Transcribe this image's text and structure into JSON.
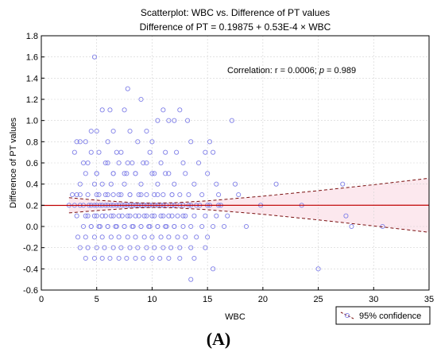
{
  "panel_label": "(A)",
  "chart_data": {
    "type": "scatter",
    "title": "Scatterplot: WBC  vs. Difference of PT values",
    "subtitle": "Difference of PT = 0.19875 + 0.53E-4 × WBC",
    "xlabel": "WBC",
    "ylabel": "Difference of PT values",
    "xlim": [
      0,
      35
    ],
    "ylim": [
      -0.6,
      1.8
    ],
    "xticks": [
      "0",
      "5",
      "10",
      "15",
      "20",
      "25",
      "30",
      "35"
    ],
    "yticks": [
      "-0.6",
      "-0.4",
      "-0.2",
      "0.0",
      "0.2",
      "0.4",
      "0.6",
      "0.8",
      "1.0",
      "1.2",
      "1.4",
      "1.6",
      "1.8"
    ],
    "grid": true,
    "annotation": {
      "prefix": "Correlation: r = 0.0006; ",
      "p_symbol": "p",
      "suffix": " = 0.989"
    },
    "legend": {
      "label": "95% confidence",
      "placement": "below-right"
    },
    "colors": {
      "points": "#8080e8",
      "fit": "#c00000",
      "confidence": "#7a1010",
      "band": "#fce8ee"
    },
    "fit": {
      "intercept": 0.19875,
      "slope": 5.3e-05
    },
    "confidence_band": {
      "x": [
        2.5,
        5,
        8.5,
        10,
        12,
        15,
        20,
        25,
        30,
        35
      ],
      "lower": [
        0.128,
        0.15,
        0.175,
        0.18,
        0.176,
        0.158,
        0.115,
        0.062,
        0.005,
        -0.055
      ],
      "upper": [
        0.272,
        0.248,
        0.224,
        0.22,
        0.224,
        0.242,
        0.286,
        0.338,
        0.394,
        0.455
      ]
    },
    "x": [
      4.8,
      7.8,
      9,
      5.5,
      6.2,
      7.5,
      11,
      12.5,
      10.5,
      11.5,
      12,
      13.2,
      17.2,
      4.5,
      5,
      6.5,
      8,
      9.5,
      3.2,
      3.5,
      4,
      6,
      8.7,
      10,
      13.5,
      15.2,
      3,
      4.5,
      5.2,
      6.8,
      7.2,
      9.8,
      11.2,
      12.2,
      14.8,
      15.5,
      3.8,
      4.2,
      5.8,
      7,
      8.2,
      9.2,
      10.8,
      12.8,
      14.2,
      4,
      5,
      6.5,
      7.7,
      8.5,
      10.2,
      11.5,
      13,
      15,
      3.5,
      4.8,
      5.5,
      6.3,
      7.5,
      9,
      10.5,
      12,
      13.8,
      15.8,
      17.5,
      21.2,
      27.2,
      2.8,
      3.5,
      4.2,
      5,
      5.8,
      6.5,
      7.2,
      8,
      8.8,
      9.5,
      10.2,
      11,
      11.8,
      12.5,
      13.3,
      14.5,
      16,
      17.8,
      3,
      3.8,
      4.5,
      5.3,
      6,
      6.8,
      7.5,
      8.3,
      9,
      9.8,
      10.5,
      11.3,
      12,
      12.8,
      13.5,
      14.3,
      15.2,
      16.2,
      19.8,
      23.5,
      3.2,
      4,
      4.8,
      5.5,
      6.3,
      7,
      7.8,
      8.5,
      9.3,
      10,
      10.8,
      11.5,
      12.3,
      13,
      13.8,
      14.8,
      15.8,
      16.8,
      2.5,
      3.5,
      4.3,
      5,
      5.8,
      6.5,
      7.3,
      8,
      8.8,
      9.5,
      10.3,
      11,
      11.8,
      12.5,
      13.3,
      14,
      15,
      16,
      27.5,
      3.8,
      4.5,
      5.3,
      6,
      6.8,
      7.5,
      8.3,
      9,
      9.8,
      10.5,
      11.3,
      12,
      12.8,
      13.5,
      14.5,
      15.5,
      16.5,
      18.5,
      28,
      30.8,
      3.3,
      4,
      4.8,
      5.5,
      6.3,
      7,
      7.8,
      8.5,
      9.3,
      10,
      10.8,
      11.5,
      12.3,
      13,
      14,
      15,
      3.5,
      4.2,
      5,
      5.7,
      6.5,
      7.2,
      8,
      8.7,
      9.5,
      10.2,
      11,
      11.7,
      12.5,
      13.5,
      14.8,
      4,
      4.8,
      5.5,
      6.2,
      7,
      7.7,
      8.5,
      9.2,
      10,
      10.7,
      11.5,
      12.5,
      13.8,
      3.2,
      4.5,
      5.2,
      6,
      6.7,
      7.5,
      8.2,
      9,
      9.7,
      10.5,
      11.2,
      12,
      4.2,
      5,
      5.8,
      6.5,
      7.3,
      8,
      8.8,
      9.5,
      10.2,
      11,
      11.8,
      12.8,
      4.8,
      5.5,
      6.3,
      7,
      7.8,
      8.5,
      9.3,
      10,
      10.8,
      5.2,
      6,
      7,
      8,
      9,
      10.5,
      11.8,
      5,
      6.5,
      7.5,
      8.5,
      10,
      11.2,
      6,
      7.8,
      9.5,
      15.5,
      25,
      13.5
    ],
    "y": [
      1.6,
      1.3,
      1.2,
      1.1,
      1.1,
      1.1,
      1.1,
      1.1,
      1.0,
      1.0,
      1.0,
      1.0,
      1.0,
      0.9,
      0.9,
      0.9,
      0.9,
      0.9,
      0.8,
      0.8,
      0.8,
      0.8,
      0.8,
      0.8,
      0.8,
      0.8,
      0.7,
      0.7,
      0.7,
      0.7,
      0.7,
      0.7,
      0.7,
      0.7,
      0.7,
      0.7,
      0.6,
      0.6,
      0.6,
      0.6,
      0.6,
      0.6,
      0.6,
      0.6,
      0.6,
      0.5,
      0.5,
      0.5,
      0.5,
      0.5,
      0.5,
      0.5,
      0.5,
      0.5,
      0.4,
      0.4,
      0.4,
      0.4,
      0.4,
      0.4,
      0.4,
      0.4,
      0.4,
      0.4,
      0.4,
      0.4,
      0.4,
      0.3,
      0.3,
      0.3,
      0.3,
      0.3,
      0.3,
      0.3,
      0.3,
      0.3,
      0.3,
      0.3,
      0.3,
      0.3,
      0.3,
      0.3,
      0.3,
      0.3,
      0.3,
      0.2,
      0.2,
      0.2,
      0.2,
      0.2,
      0.2,
      0.2,
      0.2,
      0.2,
      0.2,
      0.2,
      0.2,
      0.2,
      0.2,
      0.2,
      0.2,
      0.2,
      0.2,
      0.2,
      0.2,
      0.1,
      0.1,
      0.1,
      0.1,
      0.1,
      0.1,
      0.1,
      0.1,
      0.1,
      0.1,
      0.1,
      0.1,
      0.1,
      0.1,
      0.1,
      0.1,
      0.1,
      0.1,
      0.2,
      0.2,
      0.2,
      0.2,
      0.2,
      0.2,
      0.2,
      0.2,
      0.2,
      0.2,
      0.2,
      0.2,
      0.2,
      0.2,
      0.2,
      0.2,
      0.2,
      0.2,
      0.1,
      0.0,
      0.0,
      0.0,
      0.0,
      0.0,
      0.0,
      0.0,
      0.0,
      0.0,
      0.0,
      0.0,
      0.0,
      0.0,
      0.0,
      0.0,
      0.0,
      0.0,
      0.0,
      0.0,
      0.0,
      -0.1,
      -0.1,
      -0.1,
      -0.1,
      -0.1,
      -0.1,
      -0.1,
      -0.1,
      -0.1,
      -0.1,
      -0.1,
      -0.1,
      -0.1,
      -0.1,
      -0.1,
      -0.1,
      -0.2,
      -0.2,
      -0.2,
      -0.2,
      -0.2,
      -0.2,
      -0.2,
      -0.2,
      -0.2,
      -0.2,
      -0.2,
      -0.2,
      -0.2,
      -0.2,
      -0.2,
      -0.3,
      -0.3,
      -0.3,
      -0.3,
      -0.3,
      -0.3,
      -0.3,
      -0.3,
      -0.3,
      -0.3,
      -0.3,
      -0.3,
      -0.3,
      0.3,
      0.0,
      0.0,
      0.0,
      0.0,
      0.0,
      0.0,
      0.0,
      0.0,
      0.0,
      0.0,
      0.0,
      0.1,
      0.1,
      0.1,
      0.1,
      0.1,
      0.1,
      0.1,
      0.1,
      0.1,
      0.1,
      0.1,
      0.1,
      0.2,
      0.2,
      0.2,
      0.2,
      0.2,
      0.2,
      0.2,
      0.2,
      0.2,
      0.3,
      0.3,
      0.3,
      0.3,
      0.3,
      0.3,
      0.3,
      0.5,
      0.5,
      0.5,
      0.5,
      0.5,
      0.5,
      0.6,
      0.6,
      0.6,
      -0.4,
      -0.4,
      -0.5
    ]
  }
}
